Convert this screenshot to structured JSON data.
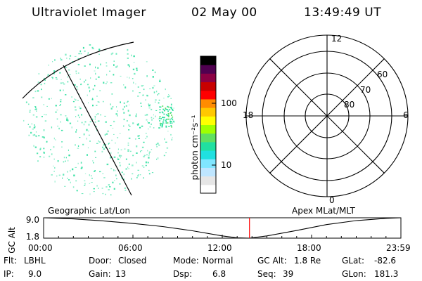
{
  "header": {
    "instrument": "Ultraviolet Imager",
    "date": "02 May 00",
    "time": "13:49:49 UT"
  },
  "colorbar": {
    "unit_label": "photon cm⁻²s⁻¹",
    "ticks": [
      "100",
      "10"
    ],
    "colors": [
      "#ffffff",
      "#e6e6e6",
      "#bfe6ff",
      "#80e6ff",
      "#20e0e0",
      "#20e0a0",
      "#60e060",
      "#a0ff00",
      "#ffff00",
      "#ffc800",
      "#ff8c00",
      "#ff0000",
      "#c80000",
      "#8c0044",
      "#500050",
      "#000000"
    ]
  },
  "geo_panel": {
    "speckle_color": "#30e0a0"
  },
  "polar": {
    "mlt_labels": [
      "12",
      "6",
      "0",
      "18"
    ],
    "lat_labels": [
      "60",
      "70",
      "80"
    ]
  },
  "panel_labels": {
    "left": "Geographic Lat/Lon",
    "right": "Apex MLat/MLT"
  },
  "chart_data": {
    "type": "line",
    "title": "",
    "ylabel": "GC Alt",
    "yticks": [
      "9.0",
      "1.8"
    ],
    "xlabels": [
      "00:00",
      "06:00",
      "12:00",
      "18:00",
      "23:59"
    ],
    "x_hours": [
      0,
      2,
      4,
      6,
      8,
      10,
      12,
      13,
      13.83,
      15,
      17,
      19,
      21,
      23,
      23.98
    ],
    "y": [
      9.0,
      8.6,
      7.9,
      7.0,
      5.9,
      4.4,
      2.6,
      1.9,
      1.8,
      2.6,
      4.5,
      6.6,
      8.0,
      8.8,
      9.0
    ],
    "ylim": [
      1.8,
      9.0
    ],
    "marker_hour": 13.83,
    "marker_color": "#ff0000"
  },
  "info": {
    "flt_label": "Flt:",
    "flt_value": "LBHL",
    "ip_label": "IP:",
    "ip_value": "9.0",
    "door_label": "Door:",
    "door_value": "Closed",
    "gain_label": "Gain:",
    "gain_value": "13",
    "mode_label": "Mode:",
    "mode_value": "Normal",
    "dsp_label": "Dsp:",
    "dsp_value": "6.8",
    "gcalt_label": "GC Alt:",
    "gcalt_value": "1.8 Re",
    "seq_label": "Seq:",
    "seq_value": "39",
    "glat_label": "GLat:",
    "glat_value": "-82.6",
    "glon_label": "GLon:",
    "glon_value": "181.3"
  }
}
